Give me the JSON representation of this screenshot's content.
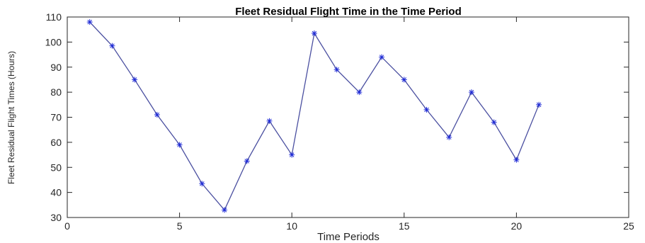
{
  "chart_data": {
    "type": "line",
    "title": "Fleet Residual Flight Time in the Time Period",
    "xlabel": "Time Periods",
    "ylabel": "Fleet Residual Flight Times (Hours)",
    "xlim": [
      0,
      25
    ],
    "ylim": [
      30,
      110
    ],
    "xticks": [
      0,
      5,
      10,
      15,
      20,
      25
    ],
    "yticks": [
      30,
      40,
      50,
      60,
      70,
      80,
      90,
      100,
      110
    ],
    "grid": false,
    "line_color": "#4a4fa0",
    "marker_color": "#1f2bd6",
    "marker": "asterisk",
    "x": [
      1,
      2,
      3,
      4,
      5,
      6,
      7,
      8,
      9,
      10,
      11,
      12,
      13,
      14,
      15,
      16,
      17,
      18,
      19,
      20,
      21
    ],
    "series": [
      {
        "values": [
          108,
          98.5,
          85,
          71,
          59,
          43.5,
          33,
          52.5,
          68.5,
          55,
          103.5,
          89,
          80,
          94,
          85,
          73,
          62,
          80,
          68,
          53,
          75
        ]
      }
    ]
  }
}
